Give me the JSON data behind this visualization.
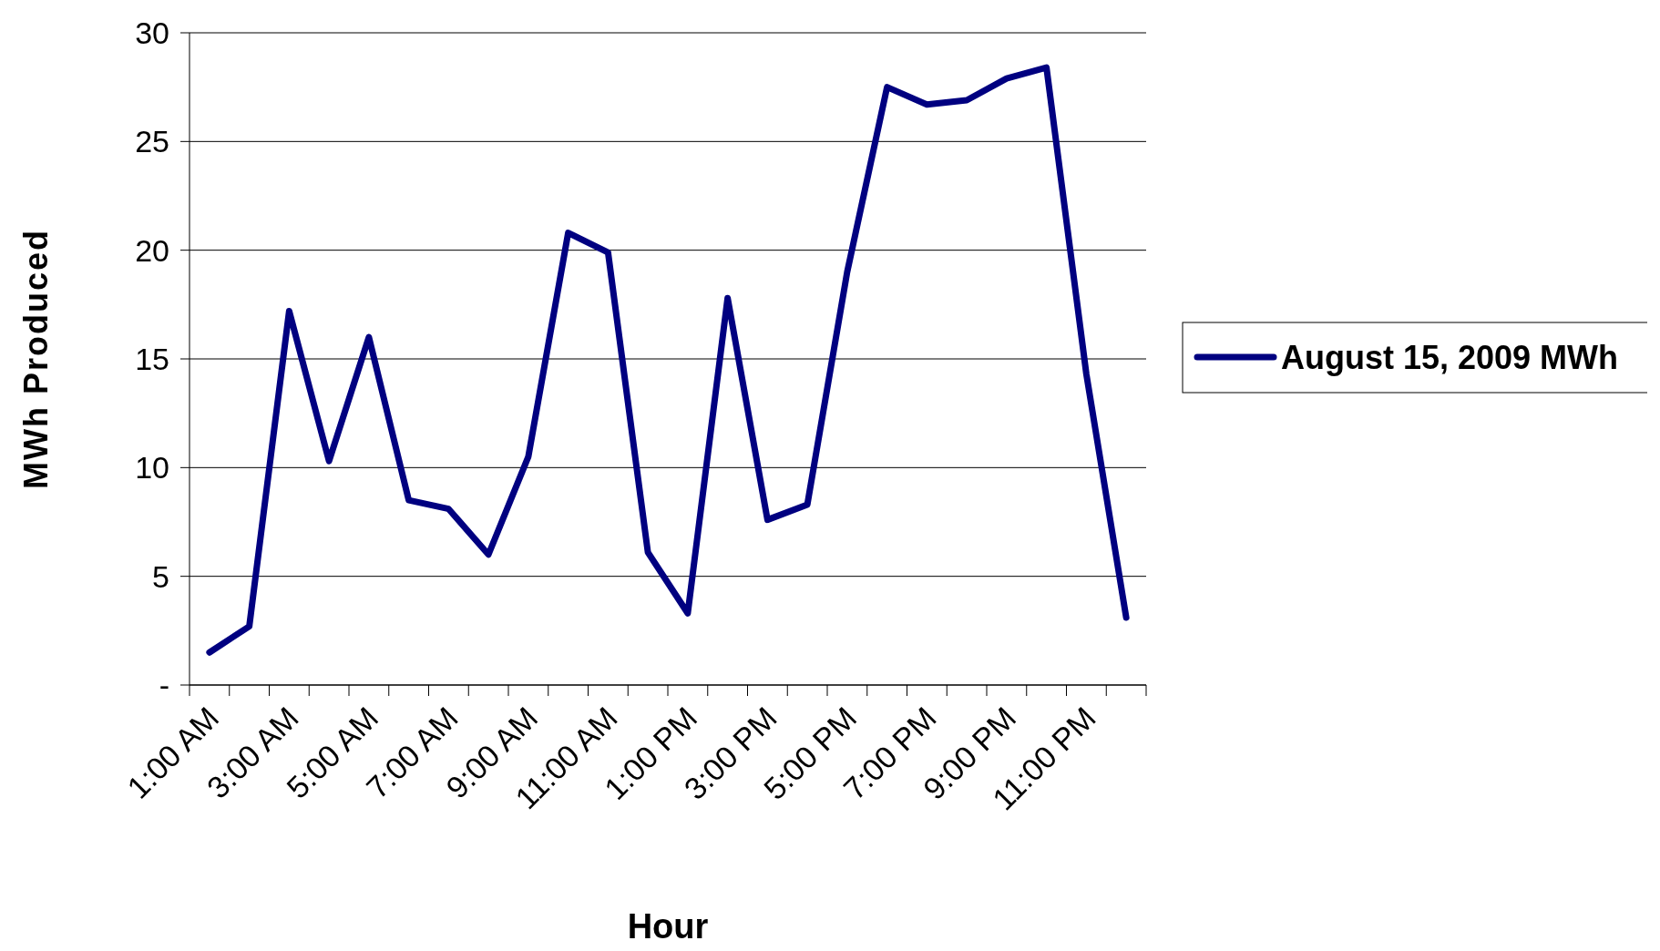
{
  "chart_data": {
    "type": "line",
    "xlabel": "Hour",
    "ylabel": "MWh Produced",
    "categories": [
      "1:00 AM",
      null,
      "3:00 AM",
      null,
      "5:00 AM",
      null,
      "7:00 AM",
      null,
      "9:00 AM",
      null,
      "11:00 AM",
      null,
      "1:00 PM",
      null,
      "3:00 PM",
      null,
      "5:00 PM",
      null,
      "7:00 PM",
      null,
      "9:00 PM",
      null,
      "11:00 PM",
      null
    ],
    "series": [
      {
        "name": "August 15, 2009 MWh",
        "color": "#000080",
        "values": [
          1.5,
          2.7,
          17.2,
          10.3,
          16.0,
          8.5,
          8.1,
          6.0,
          10.5,
          20.8,
          19.9,
          6.1,
          3.3,
          17.8,
          7.6,
          8.3,
          19.0,
          27.5,
          26.7,
          26.9,
          27.9,
          28.4,
          14.3,
          3.1
        ]
      }
    ],
    "ylim": [
      0,
      30
    ],
    "yticks": [
      {
        "value": 0,
        "label": "-"
      },
      5,
      10,
      15,
      20,
      25,
      30
    ],
    "grid": "y",
    "legend": "right",
    "marker": "none",
    "line_style": "solid"
  }
}
